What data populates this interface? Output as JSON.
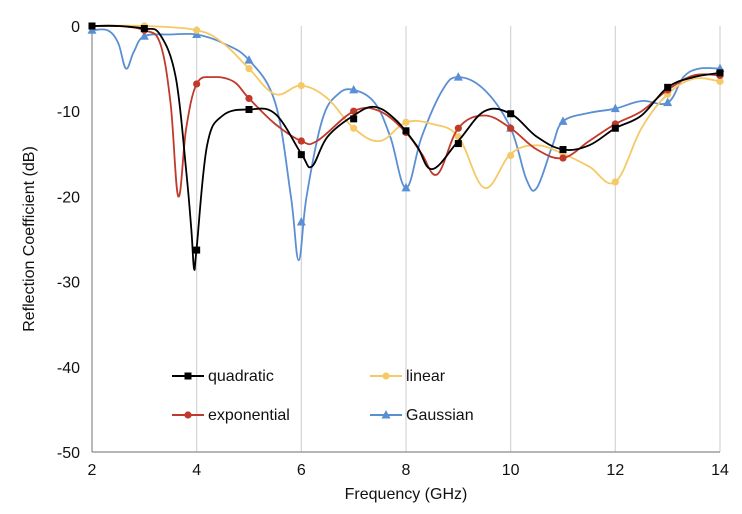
{
  "chart_data": {
    "type": "line",
    "title": "",
    "xlabel": "Frequency (GHz)",
    "ylabel": "Reflection Coefficient (dB)",
    "xlim": [
      2,
      14
    ],
    "ylim": [
      -50,
      0
    ],
    "xticks": [
      2,
      4,
      6,
      8,
      10,
      12,
      14
    ],
    "yticks": [
      0,
      -10,
      -20,
      -30,
      -40,
      -50
    ],
    "grid": "vertical",
    "legend": "bottom-left inside plot",
    "series": [
      {
        "name": "quadratic",
        "color": "#000000",
        "marker": "square",
        "curve": [
          [
            2,
            0
          ],
          [
            2.5,
            0
          ],
          [
            3,
            -0.3
          ],
          [
            3.3,
            -1
          ],
          [
            3.6,
            -6
          ],
          [
            3.8,
            -17
          ],
          [
            3.9,
            -24
          ],
          [
            3.95,
            -28.5
          ],
          [
            4.0,
            -26
          ],
          [
            4.2,
            -14
          ],
          [
            4.5,
            -10.5
          ],
          [
            5,
            -9.8
          ],
          [
            5.5,
            -10.3
          ],
          [
            6,
            -15
          ],
          [
            6.2,
            -16.5
          ],
          [
            6.5,
            -13
          ],
          [
            7,
            -10.5
          ],
          [
            7.4,
            -9.5
          ],
          [
            7.8,
            -11
          ],
          [
            8.2,
            -14
          ],
          [
            8.5,
            -16.8
          ],
          [
            9,
            -13.5
          ],
          [
            9.5,
            -10
          ],
          [
            10,
            -10.3
          ],
          [
            10.5,
            -13
          ],
          [
            11,
            -14.5
          ],
          [
            11.5,
            -14
          ],
          [
            12,
            -12
          ],
          [
            12.5,
            -10.5
          ],
          [
            13,
            -7.2
          ],
          [
            13.5,
            -6
          ],
          [
            14,
            -5.5
          ]
        ],
        "markers": [
          [
            2,
            0
          ],
          [
            3,
            -0.3
          ],
          [
            4,
            -26.3
          ],
          [
            5,
            -9.8
          ],
          [
            6,
            -15.1
          ],
          [
            7,
            -10.9
          ],
          [
            8,
            -12.3
          ],
          [
            9,
            -13.8
          ],
          [
            10,
            -10.3
          ],
          [
            11,
            -14.5
          ],
          [
            12,
            -12
          ],
          [
            13,
            -7.2
          ],
          [
            14,
            -5.5
          ]
        ]
      },
      {
        "name": "linear",
        "color": "#f5c966",
        "marker": "circle",
        "curve": [
          [
            2,
            0
          ],
          [
            3,
            0
          ],
          [
            4,
            -0.5
          ],
          [
            4.5,
            -2
          ],
          [
            5,
            -5
          ],
          [
            5.5,
            -8
          ],
          [
            6,
            -7
          ],
          [
            6.5,
            -8.5
          ],
          [
            7,
            -12
          ],
          [
            7.5,
            -13.5
          ],
          [
            8,
            -11.3
          ],
          [
            8.5,
            -11.5
          ],
          [
            9,
            -13
          ],
          [
            9.5,
            -19
          ],
          [
            10,
            -15
          ],
          [
            10.5,
            -14
          ],
          [
            11,
            -15
          ],
          [
            11.5,
            -16.5
          ],
          [
            12,
            -18.3
          ],
          [
            12.5,
            -12
          ],
          [
            13,
            -8
          ],
          [
            13.5,
            -6.2
          ],
          [
            14,
            -6.5
          ]
        ],
        "markers": [
          [
            2,
            0
          ],
          [
            3,
            0
          ],
          [
            4,
            -0.5
          ],
          [
            5,
            -5
          ],
          [
            6,
            -7
          ],
          [
            7,
            -12
          ],
          [
            8,
            -11.3
          ],
          [
            9,
            -13
          ],
          [
            10,
            -15.2
          ],
          [
            11,
            -15
          ],
          [
            12,
            -18.3
          ],
          [
            13,
            -8
          ],
          [
            14,
            -6.5
          ]
        ]
      },
      {
        "name": "exponential",
        "color": "#c0392b",
        "marker": "circle",
        "curve": [
          [
            2,
            0
          ],
          [
            2.5,
            0
          ],
          [
            3,
            -0.5
          ],
          [
            3.3,
            -2
          ],
          [
            3.5,
            -9
          ],
          [
            3.65,
            -20
          ],
          [
            3.8,
            -12
          ],
          [
            4,
            -6.8
          ],
          [
            4.3,
            -6
          ],
          [
            4.7,
            -6.5
          ],
          [
            5,
            -8.5
          ],
          [
            5.5,
            -11.5
          ],
          [
            6,
            -13.5
          ],
          [
            6.3,
            -13.5
          ],
          [
            7,
            -10
          ],
          [
            7.5,
            -10
          ],
          [
            8,
            -12.5
          ],
          [
            8.3,
            -15
          ],
          [
            8.6,
            -17.4
          ],
          [
            9,
            -12
          ],
          [
            9.5,
            -10.5
          ],
          [
            10,
            -12
          ],
          [
            10.5,
            -14.5
          ],
          [
            11,
            -15.5
          ],
          [
            11.5,
            -13.5
          ],
          [
            12,
            -11.5
          ],
          [
            12.5,
            -10
          ],
          [
            13,
            -7.5
          ],
          [
            13.5,
            -5.8
          ],
          [
            14,
            -5.8
          ]
        ],
        "markers": [
          [
            2,
            0
          ],
          [
            3,
            -0.5
          ],
          [
            4,
            -6.8
          ],
          [
            5,
            -8.5
          ],
          [
            6,
            -13.5
          ],
          [
            7,
            -10
          ],
          [
            8,
            -12.5
          ],
          [
            9,
            -12
          ],
          [
            10,
            -12
          ],
          [
            11,
            -15.5
          ],
          [
            12,
            -11.5
          ],
          [
            13,
            -7.5
          ],
          [
            14,
            -5.8
          ]
        ]
      },
      {
        "name": "Gaussian",
        "color": "#5b8fd4",
        "marker": "triangle",
        "curve": [
          [
            2,
            -0.5
          ],
          [
            2.3,
            -0.5
          ],
          [
            2.5,
            -2
          ],
          [
            2.65,
            -5
          ],
          [
            2.8,
            -3
          ],
          [
            3,
            -1.2
          ],
          [
            3.5,
            -1
          ],
          [
            4,
            -1
          ],
          [
            4.5,
            -2
          ],
          [
            5,
            -4
          ],
          [
            5.5,
            -9
          ],
          [
            5.8,
            -20
          ],
          [
            5.95,
            -27.5
          ],
          [
            6.1,
            -20
          ],
          [
            6.4,
            -11
          ],
          [
            6.7,
            -8
          ],
          [
            7,
            -7.5
          ],
          [
            7.4,
            -9
          ],
          [
            7.7,
            -13
          ],
          [
            8,
            -19
          ],
          [
            8.3,
            -13
          ],
          [
            8.7,
            -7.5
          ],
          [
            9,
            -6
          ],
          [
            9.5,
            -7.5
          ],
          [
            10,
            -12
          ],
          [
            10.3,
            -18
          ],
          [
            10.5,
            -19
          ],
          [
            10.8,
            -14
          ],
          [
            11,
            -11.2
          ],
          [
            11.5,
            -10.2
          ],
          [
            12,
            -9.7
          ],
          [
            12.5,
            -8.8
          ],
          [
            13,
            -9
          ],
          [
            13.3,
            -6
          ],
          [
            13.6,
            -5
          ],
          [
            14,
            -5
          ]
        ],
        "markers": [
          [
            2,
            -0.5
          ],
          [
            3,
            -1.2
          ],
          [
            4,
            -1
          ],
          [
            5,
            -4
          ],
          [
            6,
            -23
          ],
          [
            7,
            -7.5
          ],
          [
            8,
            -19
          ],
          [
            9,
            -6
          ],
          [
            10,
            -12
          ],
          [
            11,
            -11.2
          ],
          [
            12,
            -9.7
          ],
          [
            13,
            -9
          ],
          [
            14,
            -5
          ]
        ]
      }
    ]
  }
}
